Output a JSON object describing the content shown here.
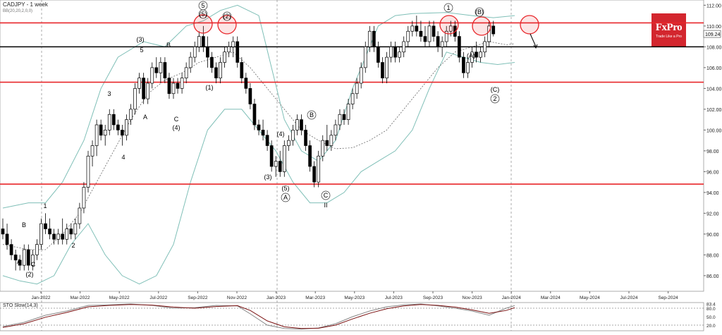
{
  "header": {
    "symbol": "CADJPY - 1 week",
    "indicator": "BB(20,20,2,0,0)"
  },
  "sto_label": "STO Slow(14,3)",
  "logo": {
    "brand": "FxPro",
    "tagline": "Trade Like a Pro"
  },
  "colors": {
    "up": "#ffffff",
    "down": "#000000",
    "level_red": "#e8262a",
    "level_black": "#000000",
    "bb": "#7fbfb7",
    "mid": "#666666",
    "grid": "#c8c8c8",
    "k": "#888888",
    "d": "#7a1010"
  },
  "chart_data": {
    "type": "candlestick",
    "title": "CADJPY - 1 week",
    "ylim": [
      84.5,
      112.5
    ],
    "y_ticks": [
      86.0,
      88.0,
      90.0,
      92.0,
      94.0,
      96.0,
      98.0,
      100.0,
      102.0,
      104.0,
      106.0,
      108.0,
      110.0,
      112.0
    ],
    "x_ticks": [
      "Jan-2022",
      "Mar-2022",
      "May-2022",
      "Jul-2022",
      "Sep-2022",
      "Nov-2022",
      "Jan-2023",
      "Mar-2023",
      "May-2023",
      "Jul-2023",
      "Sep-2023",
      "Nov-2023",
      "Jan-2024",
      "Mar-2024",
      "May-2024",
      "Jul-2024",
      "Sep-2024"
    ],
    "last_price": "109.24",
    "current_price_line": 108.0,
    "levels": [
      110.3,
      104.6,
      94.8
    ],
    "bb_upper": [
      [
        0,
        92.5
      ],
      [
        6,
        93
      ],
      [
        10,
        93
      ],
      [
        14,
        95
      ],
      [
        19,
        99
      ],
      [
        23,
        104
      ],
      [
        27,
        107
      ],
      [
        33,
        108.5
      ],
      [
        38,
        108
      ],
      [
        43,
        110
      ],
      [
        47,
        110.5
      ],
      [
        51,
        111.5
      ],
      [
        55,
        112
      ],
      [
        60,
        111
      ],
      [
        63,
        106
      ],
      [
        66,
        101
      ],
      [
        70,
        98
      ],
      [
        74,
        97
      ],
      [
        78,
        99
      ],
      [
        82,
        104
      ],
      [
        86,
        108
      ],
      [
        88,
        110
      ],
      [
        92,
        111
      ],
      [
        96,
        111.2
      ],
      [
        104,
        111.3
      ],
      [
        110,
        111
      ],
      [
        115,
        110.8
      ],
      [
        120,
        111
      ]
    ],
    "bb_mid": [
      [
        0,
        89
      ],
      [
        6,
        88.5
      ],
      [
        10,
        88.5
      ],
      [
        14,
        90
      ],
      [
        18,
        92
      ],
      [
        22,
        95
      ],
      [
        26,
        98
      ],
      [
        30,
        101
      ],
      [
        34,
        103.5
      ],
      [
        38,
        104.8
      ],
      [
        42,
        105.5
      ],
      [
        46,
        106.5
      ],
      [
        50,
        107
      ],
      [
        54,
        107.5
      ],
      [
        58,
        106
      ],
      [
        62,
        104
      ],
      [
        66,
        102
      ],
      [
        70,
        100
      ],
      [
        74,
        99
      ],
      [
        78,
        98.2
      ],
      [
        82,
        98.3
      ],
      [
        86,
        99
      ],
      [
        90,
        100
      ],
      [
        94,
        102
      ],
      [
        98,
        104
      ],
      [
        102,
        106
      ],
      [
        106,
        107.5
      ],
      [
        110,
        108
      ],
      [
        114,
        108.5
      ],
      [
        118,
        108.2
      ],
      [
        120,
        108.3
      ]
    ],
    "bb_lower": [
      [
        0,
        86
      ],
      [
        4,
        85.5
      ],
      [
        8,
        85.2
      ],
      [
        12,
        86
      ],
      [
        16,
        89
      ],
      [
        20,
        91
      ],
      [
        24,
        88
      ],
      [
        28,
        86
      ],
      [
        32,
        85.2
      ],
      [
        36,
        86
      ],
      [
        40,
        89
      ],
      [
        44,
        95
      ],
      [
        48,
        100
      ],
      [
        52,
        102
      ],
      [
        56,
        102
      ],
      [
        60,
        100
      ],
      [
        64,
        98
      ],
      [
        68,
        95
      ],
      [
        72,
        93
      ],
      [
        76,
        93
      ],
      [
        80,
        94
      ],
      [
        84,
        96
      ],
      [
        88,
        97
      ],
      [
        92,
        98
      ],
      [
        96,
        100
      ],
      [
        100,
        104
      ],
      [
        104,
        107.5
      ],
      [
        108,
        107
      ],
      [
        112,
        106.5
      ],
      [
        116,
        106.3
      ],
      [
        120,
        106.5
      ]
    ],
    "candles": [
      [
        90.5,
        91.5,
        89.5,
        90
      ],
      [
        90,
        91,
        88.5,
        89
      ],
      [
        89,
        89.5,
        87.5,
        88
      ],
      [
        88,
        88.5,
        86.5,
        87.5
      ],
      [
        87.5,
        88,
        86.5,
        87
      ],
      [
        87,
        89,
        86.5,
        88.5
      ],
      [
        88.5,
        89,
        86.5,
        87
      ],
      [
        87,
        88.5,
        86.5,
        88
      ],
      [
        88,
        89.5,
        87.5,
        89
      ],
      [
        89,
        91.5,
        88.5,
        91
      ],
      [
        91,
        92,
        90,
        90.5
      ],
      [
        90.5,
        91.5,
        89.5,
        90
      ],
      [
        90,
        90.5,
        89,
        89.5
      ],
      [
        89.5,
        90.5,
        89,
        90
      ],
      [
        90,
        91.5,
        89,
        89.5
      ],
      [
        89.5,
        91,
        89,
        90.5
      ],
      [
        90.5,
        91,
        89.5,
        90
      ],
      [
        90,
        91.5,
        89.5,
        91
      ],
      [
        91,
        93,
        90.5,
        92.5
      ],
      [
        92.5,
        95,
        92,
        94.5
      ],
      [
        94.5,
        98,
        94,
        97.5
      ],
      [
        97.5,
        99,
        96.5,
        98.5
      ],
      [
        98.5,
        101,
        97.5,
        100.5
      ],
      [
        100.5,
        101,
        99,
        99.5
      ],
      [
        99.5,
        100.5,
        98.5,
        100
      ],
      [
        100,
        102,
        99.5,
        101.5
      ],
      [
        101.5,
        102,
        100,
        100.5
      ],
      [
        100.5,
        101,
        99.5,
        100
      ],
      [
        100,
        100.5,
        98.5,
        99.5
      ],
      [
        99.5,
        101.5,
        99,
        101
      ],
      [
        101,
        102.5,
        100.5,
        102
      ],
      [
        102,
        104.5,
        101.5,
        104
      ],
      [
        104,
        105.5,
        103.5,
        105
      ],
      [
        105,
        105.5,
        102.5,
        103
      ],
      [
        103,
        105,
        102.5,
        104.5
      ],
      [
        104.5,
        106.5,
        104,
        106
      ],
      [
        106,
        107,
        105,
        105.5
      ],
      [
        105.5,
        107,
        104.5,
        106.5
      ],
      [
        106.5,
        107,
        104.5,
        105
      ],
      [
        105,
        105.5,
        103,
        103.5
      ],
      [
        103.5,
        105,
        103,
        104.5
      ],
      [
        104.5,
        105,
        103.5,
        104
      ],
      [
        104,
        105.5,
        103.5,
        105
      ],
      [
        105,
        106.5,
        104.5,
        106
      ],
      [
        106,
        107.5,
        105.5,
        107
      ],
      [
        107,
        108.5,
        106.5,
        108
      ],
      [
        108,
        109.5,
        107.5,
        109
      ],
      [
        109,
        110,
        107.5,
        108
      ],
      [
        108,
        109,
        106,
        107
      ],
      [
        107,
        107.5,
        105.5,
        106
      ],
      [
        106,
        106.5,
        104.5,
        105
      ],
      [
        105,
        107,
        104.5,
        106.5
      ],
      [
        106.5,
        108,
        106,
        107.5
      ],
      [
        107.5,
        108.5,
        107,
        108
      ],
      [
        108,
        109,
        107,
        108.5
      ],
      [
        108.5,
        109,
        106,
        106.5
      ],
      [
        106.5,
        107,
        104.5,
        105
      ],
      [
        105,
        105.5,
        103.5,
        104
      ],
      [
        104,
        104.5,
        102,
        102.5
      ],
      [
        102.5,
        103,
        100,
        100.5
      ],
      [
        100.5,
        101,
        99.5,
        100
      ],
      [
        100,
        101,
        99,
        99.5
      ],
      [
        99.5,
        100,
        98,
        98.5
      ],
      [
        98.5,
        99,
        96,
        96.5
      ],
      [
        96.5,
        97.5,
        95.5,
        97
      ],
      [
        97,
        98,
        95.5,
        96
      ],
      [
        96,
        99,
        95.5,
        98.5
      ],
      [
        98.5,
        99.5,
        98,
        99
      ],
      [
        99,
        100.5,
        98.5,
        100
      ],
      [
        100,
        101.5,
        99.5,
        101
      ],
      [
        101,
        101.5,
        99.5,
        100
      ],
      [
        100,
        100.5,
        98,
        98.5
      ],
      [
        98.5,
        99,
        96,
        96.5
      ],
      [
        96.5,
        97,
        94.5,
        95
      ],
      [
        95,
        98,
        94.5,
        97.5
      ],
      [
        97.5,
        99.5,
        97,
        99
      ],
      [
        99,
        100.5,
        98,
        98.5
      ],
      [
        98.5,
        100,
        98,
        99.5
      ],
      [
        99.5,
        101,
        99,
        100.5
      ],
      [
        100.5,
        102,
        100,
        101.5
      ],
      [
        101.5,
        102,
        100.5,
        101
      ],
      [
        101,
        103,
        100.5,
        102.5
      ],
      [
        102.5,
        104,
        102,
        103.5
      ],
      [
        103.5,
        105,
        103,
        104.5
      ],
      [
        104.5,
        106.5,
        104,
        106
      ],
      [
        106,
        108.5,
        105.5,
        108
      ],
      [
        108,
        110,
        107.5,
        109.5
      ],
      [
        109.5,
        110,
        107.5,
        108
      ],
      [
        108,
        108.5,
        106,
        106.5
      ],
      [
        106.5,
        107,
        104.5,
        105
      ],
      [
        105,
        107.5,
        104.5,
        107
      ],
      [
        107,
        108.5,
        106.5,
        108
      ],
      [
        108,
        108.5,
        106.5,
        107
      ],
      [
        107,
        108,
        106.5,
        107.5
      ],
      [
        107.5,
        109,
        107,
        108.5
      ],
      [
        108.5,
        110,
        108,
        109.5
      ],
      [
        109.5,
        110.5,
        109,
        110
      ],
      [
        110,
        111,
        109,
        109.5
      ],
      [
        109.5,
        110.5,
        108.5,
        109
      ],
      [
        109,
        110,
        108,
        108.5
      ],
      [
        108.5,
        110.5,
        108,
        110
      ],
      [
        110,
        110.5,
        108.5,
        109
      ],
      [
        109,
        109.5,
        107.5,
        108
      ],
      [
        108,
        109,
        107,
        108.5
      ],
      [
        108.5,
        110,
        108,
        109.5
      ],
      [
        109.5,
        110.5,
        109,
        110
      ],
      [
        110,
        110.5,
        108.5,
        109
      ],
      [
        109,
        109.5,
        106.5,
        107
      ],
      [
        107,
        107.5,
        105,
        105.5
      ],
      [
        105.5,
        107,
        105,
        106.5
      ],
      [
        106.5,
        108,
        106,
        107.5
      ],
      [
        107.5,
        108.5,
        106.5,
        107
      ],
      [
        107,
        108,
        106.5,
        107.5
      ],
      [
        107.5,
        109,
        107,
        108.5
      ],
      [
        108.5,
        110.5,
        108,
        110
      ],
      [
        110,
        110.5,
        109,
        109.24
      ]
    ],
    "labels": [
      "(2)",
      "A",
      "B",
      "C",
      "1",
      "2",
      "3",
      "4",
      "A",
      "B",
      "C",
      "(3)",
      "5",
      "(4)",
      "(1)",
      "(5)",
      "5",
      "(2)",
      "(4)",
      "(3)",
      "(5)",
      "A",
      "B",
      "C",
      "II",
      "1",
      "(A)",
      "(B)",
      "(C)",
      "2"
    ],
    "stoch": {
      "title": "STO Slow(14,3)",
      "ylim": [
        0,
        100
      ],
      "levels": [
        80.0,
        20.0
      ],
      "k": [
        [
          0,
          15
        ],
        [
          5,
          30
        ],
        [
          10,
          55
        ],
        [
          15,
          70
        ],
        [
          20,
          90
        ],
        [
          25,
          92
        ],
        [
          30,
          95
        ],
        [
          35,
          90
        ],
        [
          40,
          80
        ],
        [
          45,
          82
        ],
        [
          50,
          90
        ],
        [
          55,
          88
        ],
        [
          58,
          60
        ],
        [
          62,
          20
        ],
        [
          66,
          8
        ],
        [
          70,
          6
        ],
        [
          74,
          10
        ],
        [
          78,
          25
        ],
        [
          82,
          50
        ],
        [
          86,
          70
        ],
        [
          90,
          85
        ],
        [
          94,
          92
        ],
        [
          98,
          95
        ],
        [
          102,
          88
        ],
        [
          106,
          80
        ],
        [
          110,
          70
        ],
        [
          114,
          55
        ],
        [
          118,
          80
        ],
        [
          120,
          89
        ]
      ],
      "d": [
        [
          0,
          12
        ],
        [
          5,
          25
        ],
        [
          10,
          48
        ],
        [
          15,
          65
        ],
        [
          20,
          85
        ],
        [
          25,
          90
        ],
        [
          30,
          93
        ],
        [
          35,
          91
        ],
        [
          40,
          84
        ],
        [
          45,
          80
        ],
        [
          50,
          86
        ],
        [
          55,
          89
        ],
        [
          58,
          72
        ],
        [
          62,
          35
        ],
        [
          66,
          14
        ],
        [
          70,
          8
        ],
        [
          74,
          9
        ],
        [
          78,
          20
        ],
        [
          82,
          42
        ],
        [
          86,
          62
        ],
        [
          90,
          78
        ],
        [
          94,
          88
        ],
        [
          98,
          93
        ],
        [
          102,
          90
        ],
        [
          106,
          84
        ],
        [
          110,
          74
        ],
        [
          114,
          62
        ],
        [
          118,
          72
        ],
        [
          120,
          82
        ]
      ],
      "value_labels": [
        "83.4",
        "80.0",
        "50.0",
        "20.0"
      ]
    }
  }
}
